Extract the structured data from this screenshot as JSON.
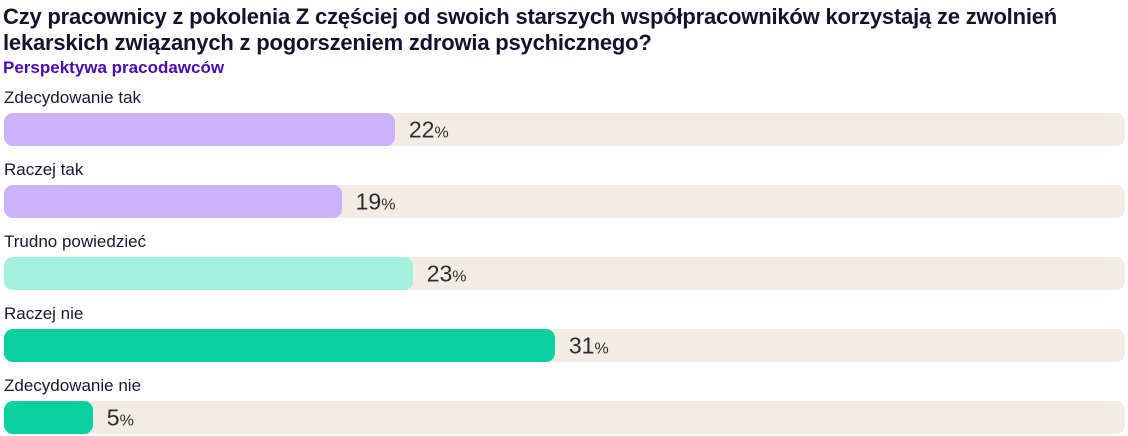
{
  "chart_data": {
    "type": "bar",
    "orientation": "horizontal",
    "title": "Czy pracownicy z pokolenia Z częściej od swoich starszych współpracowników korzystają ze zwolnień lekarskich związanych z pogorszeniem zdrowia psychicznego?",
    "subtitle": "Perspektywa pracodawców",
    "unit": "%",
    "categories": [
      "Zdecydowanie tak",
      "Raczej tak",
      "Trudno powiedzieć",
      "Raczej nie",
      "Zdecydowanie nie"
    ],
    "values": [
      22,
      19,
      23,
      31,
      5
    ],
    "grid": false,
    "legend": false,
    "rows": [
      {
        "label": "Zdecydowanie tak",
        "value": 22,
        "display_value": "22",
        "unit": "%",
        "color": "#cbb2f9"
      },
      {
        "label": "Raczej tak",
        "value": 19,
        "display_value": "19",
        "unit": "%",
        "color": "#cbb2f9"
      },
      {
        "label": "Trudno powiedzieć",
        "value": 23,
        "display_value": "23",
        "unit": "%",
        "color": "#a3f0dc"
      },
      {
        "label": "Raczej nie",
        "value": 31,
        "display_value": "31",
        "unit": "%",
        "color": "#0ad19e"
      },
      {
        "label": "Zdecydowanie nie",
        "value": 5,
        "display_value": "5",
        "unit": "%",
        "color": "#0ad19e"
      }
    ],
    "colors": {
      "title_text": "#17112f",
      "subtitle_text": "#4c09ae",
      "label_text": "#1b1535",
      "value_text": "#2d2d2d",
      "track": "#f1ede5",
      "bar_purple": "#cbb2f9",
      "bar_mint": "#a3f0dc",
      "bar_green": "#0ad19e",
      "background": "#ffffff"
    }
  }
}
